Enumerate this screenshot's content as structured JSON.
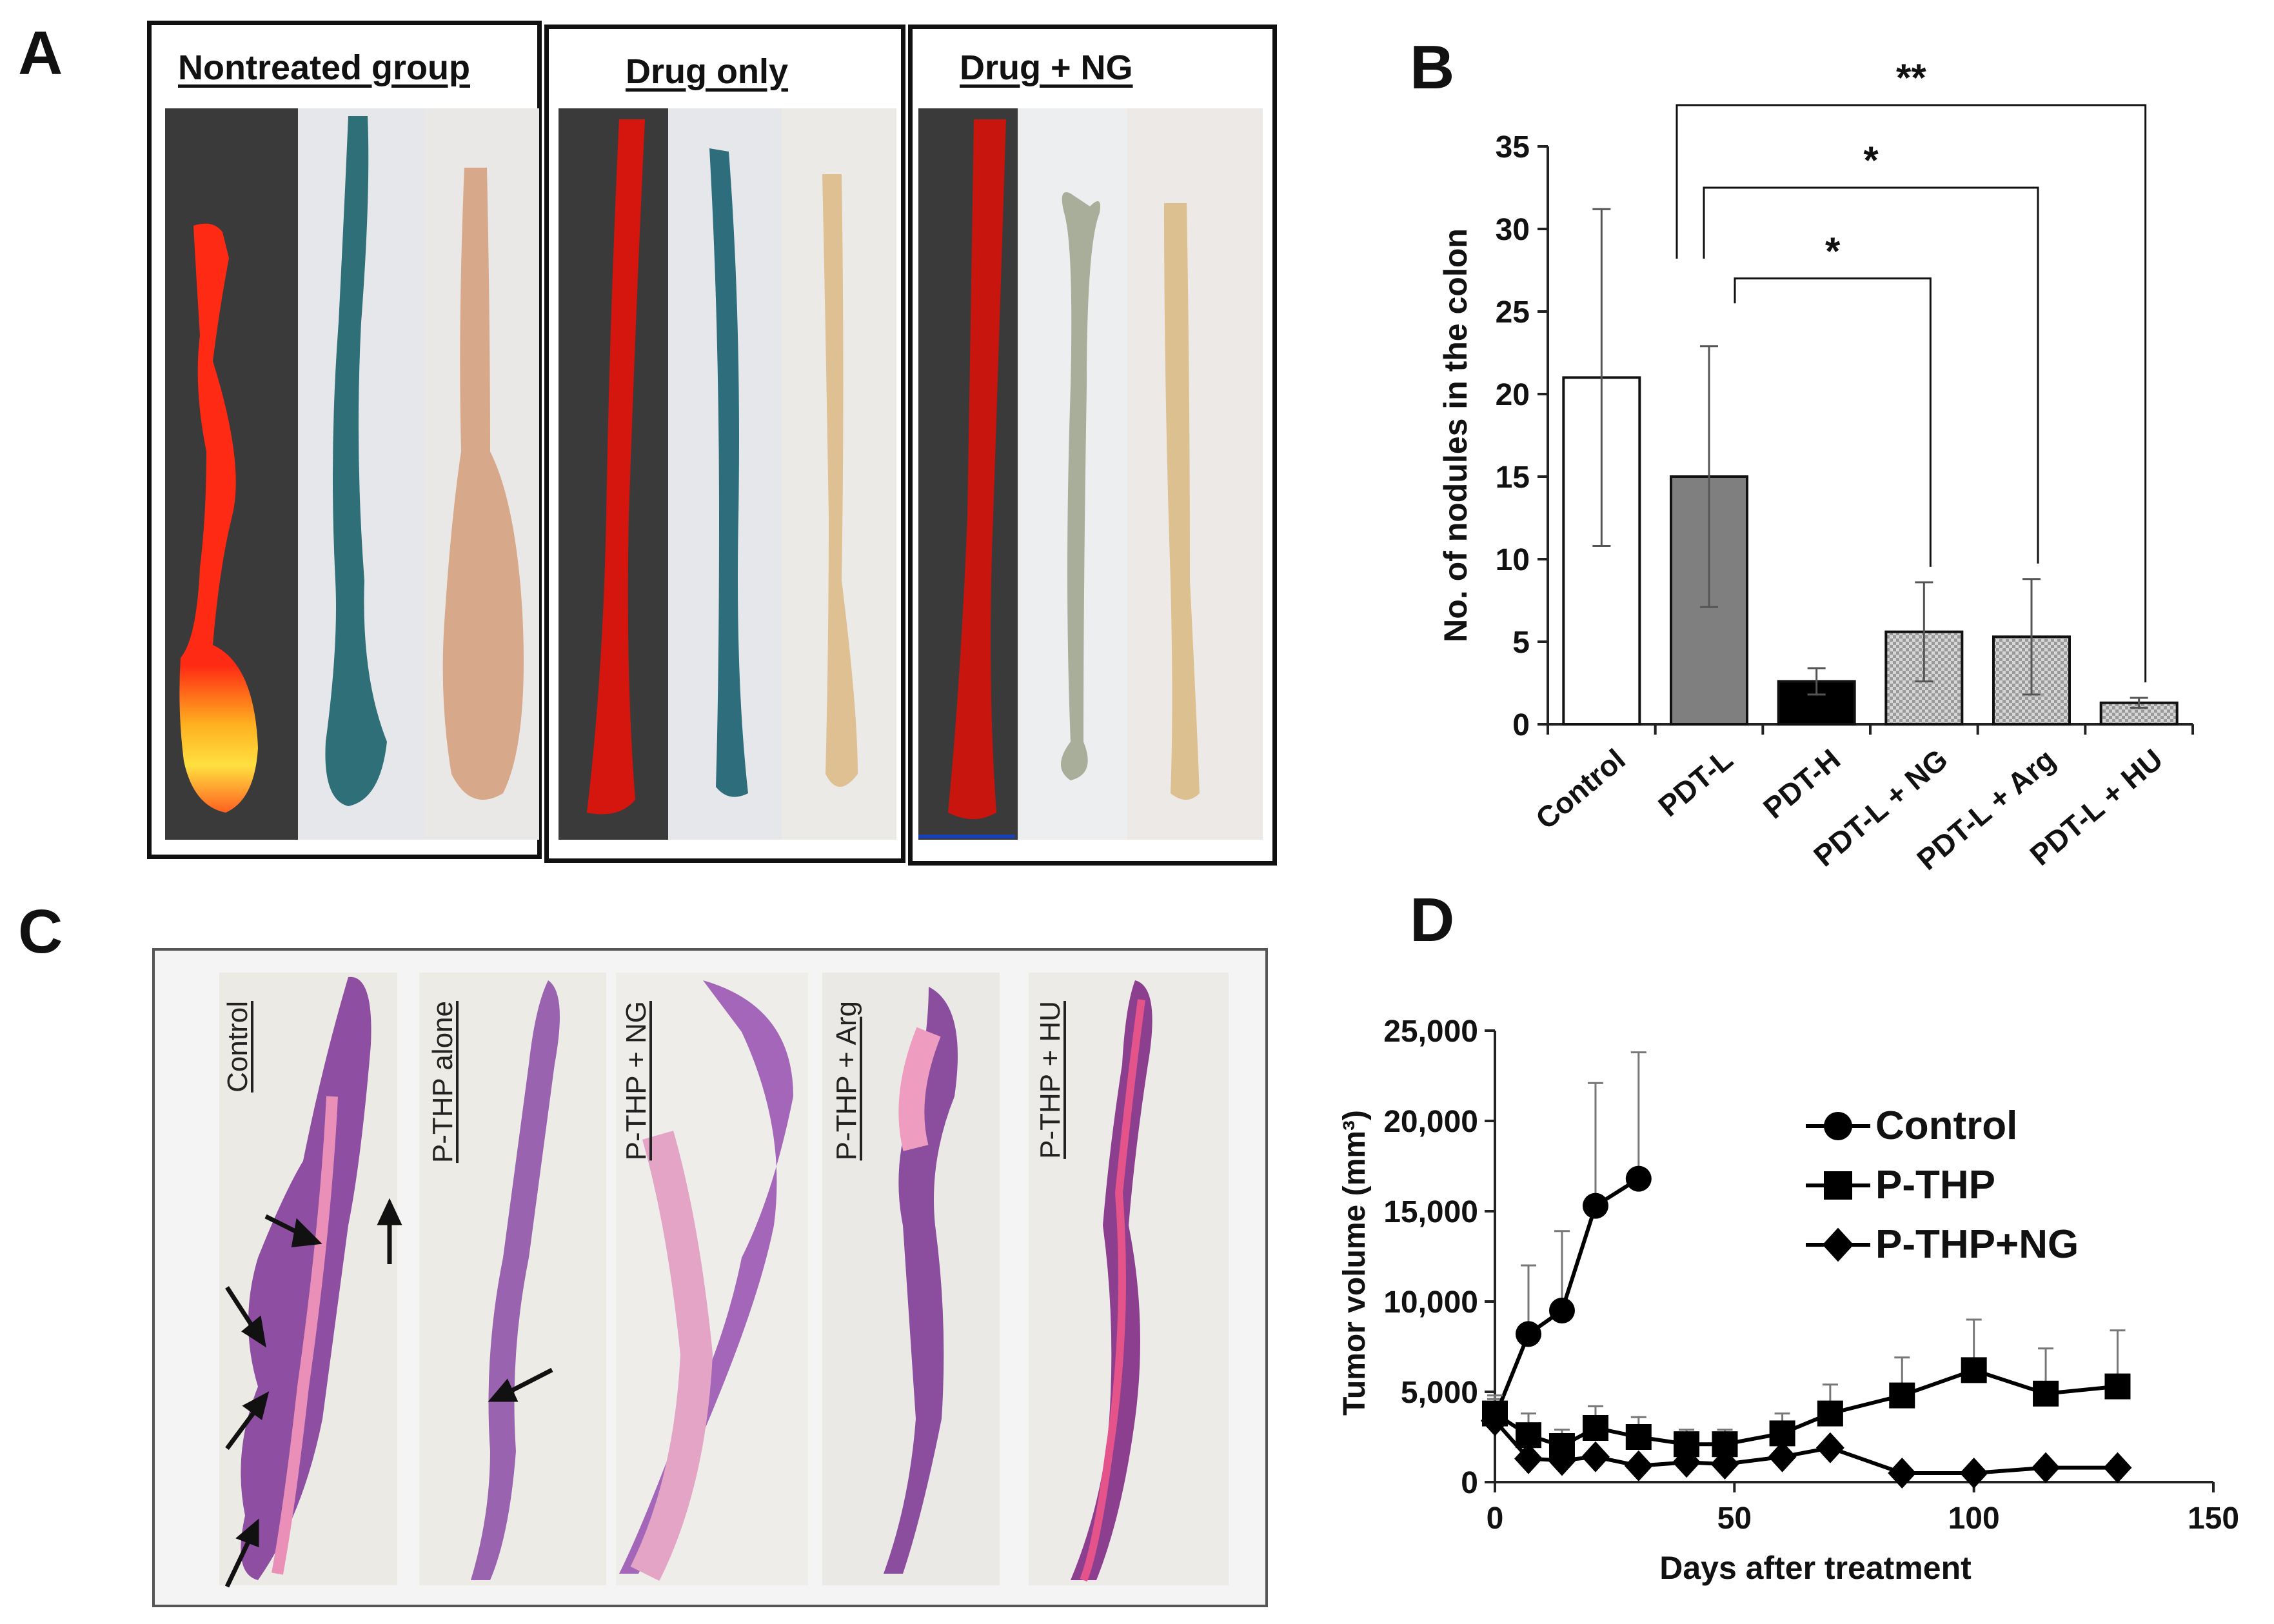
{
  "panels": {
    "a": "A",
    "b": "B",
    "c": "C",
    "d": "D"
  },
  "panel_a": {
    "groups": [
      "Nontreated group",
      "Drug only",
      "Drug + NG"
    ]
  },
  "panel_c": {
    "slides": [
      "Control",
      "P-THP alone",
      "P-THP + NG",
      "P-THP + Arg",
      "P-THP + HU"
    ]
  },
  "chart_data": [
    {
      "type": "bar",
      "ylabel": "No. of nodules in the colon",
      "ylim": [
        0,
        35
      ],
      "yticks": [
        0,
        5,
        10,
        15,
        20,
        25,
        30,
        35
      ],
      "categories": [
        "Control",
        "PDT-L",
        "PDT-H",
        "PDT-L + NG",
        "PDT-L + Arg",
        "PDT-L + HU"
      ],
      "values": [
        21,
        15,
        2.6,
        5.6,
        5.3,
        1.3
      ],
      "errors": [
        10.2,
        7.9,
        0.8,
        3.0,
        3.5,
        0.3
      ],
      "fills": [
        "#ffffff",
        "#7f7f7f",
        "#000000",
        "pattern",
        "pattern",
        "pattern"
      ],
      "significance": [
        {
          "from": "PDT-L",
          "to": "PDT-L + HU",
          "label": "**"
        },
        {
          "from": "PDT-L",
          "to": "PDT-L + Arg",
          "label": "*"
        },
        {
          "from": "PDT-L",
          "to": "PDT-L + NG",
          "label": "*"
        }
      ]
    },
    {
      "type": "line",
      "xlabel": "Days after treatment",
      "ylabel": "Tumor volume (mm³)",
      "xlim": [
        0,
        150
      ],
      "ylim": [
        0,
        25000
      ],
      "xticks": [
        0,
        50,
        100,
        150
      ],
      "yticks": [
        "0",
        "5,000",
        "10,000",
        "15,000",
        "20,000",
        "25,000"
      ],
      "series": [
        {
          "name": "Control",
          "marker": "circle",
          "x": [
            0,
            7,
            14,
            21,
            30
          ],
          "y": [
            3600,
            8200,
            9500,
            15300,
            16800
          ],
          "err": [
            1000,
            3800,
            4400,
            6800,
            7000
          ]
        },
        {
          "name": "P-THP",
          "marker": "square",
          "x": [
            0,
            7,
            14,
            21,
            30,
            40,
            48,
            60,
            70,
            85,
            100,
            115,
            130
          ],
          "y": [
            3800,
            2600,
            2000,
            3000,
            2500,
            2100,
            2100,
            2700,
            3800,
            4800,
            6200,
            4900,
            5300
          ],
          "err": [
            1000,
            1200,
            900,
            1200,
            1100,
            800,
            800,
            1100,
            1600,
            2100,
            2800,
            2500,
            3100
          ]
        },
        {
          "name": "P-THP+NG",
          "marker": "diamond",
          "x": [
            0,
            7,
            14,
            21,
            30,
            40,
            48,
            60,
            70,
            85,
            100,
            115,
            130
          ],
          "y": [
            3400,
            1300,
            1200,
            1400,
            900,
            1100,
            1000,
            1400,
            1900,
            500,
            500,
            800,
            800
          ],
          "err": [
            300,
            300,
            300,
            300,
            200,
            200,
            200,
            300,
            300,
            100,
            100,
            100,
            100
          ]
        }
      ]
    }
  ]
}
